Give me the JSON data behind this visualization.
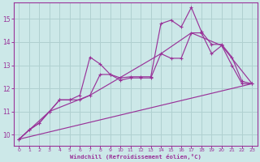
{
  "bg_color": "#cce8e8",
  "grid_color": "#b0d0d0",
  "line_color": "#993399",
  "spine_color": "#993399",
  "xlim": [
    -0.5,
    23.5
  ],
  "ylim": [
    9.5,
    15.7
  ],
  "xticks": [
    0,
    1,
    2,
    3,
    4,
    5,
    6,
    7,
    8,
    9,
    10,
    11,
    12,
    13,
    14,
    15,
    16,
    17,
    18,
    19,
    20,
    21,
    22,
    23
  ],
  "yticks": [
    10,
    11,
    12,
    13,
    14,
    15
  ],
  "xlabel": "Windchill (Refroidissement éolien,°C)",
  "line1_x": [
    0,
    1,
    2,
    3,
    4,
    5,
    6,
    7,
    8,
    9,
    10,
    11,
    12,
    13,
    14,
    15,
    16,
    17,
    18,
    19,
    20,
    21,
    22,
    23
  ],
  "line1_y": [
    9.8,
    10.2,
    10.5,
    11.0,
    11.5,
    11.5,
    11.7,
    13.35,
    13.05,
    12.6,
    12.45,
    12.5,
    12.5,
    12.5,
    14.8,
    14.95,
    14.65,
    15.5,
    14.45,
    13.9,
    13.9,
    13.35,
    12.3,
    12.2
  ],
  "line2_x": [
    0,
    1,
    2,
    3,
    4,
    5,
    6,
    7,
    8,
    9,
    10,
    11,
    12,
    13,
    14,
    15,
    16,
    17,
    18,
    19,
    20,
    21,
    22,
    23
  ],
  "line2_y": [
    9.8,
    10.2,
    10.5,
    11.0,
    11.5,
    11.5,
    11.5,
    11.7,
    12.6,
    12.6,
    12.35,
    12.45,
    12.45,
    12.45,
    13.5,
    13.3,
    13.3,
    14.4,
    14.4,
    13.5,
    13.85,
    13.0,
    12.2,
    12.2
  ],
  "line3_x": [
    0,
    3,
    7,
    14,
    17,
    20,
    23
  ],
  "line3_y": [
    9.8,
    11.0,
    11.7,
    13.5,
    14.4,
    13.85,
    12.2
  ],
  "line4_x": [
    0,
    23
  ],
  "line4_y": [
    9.8,
    12.2
  ]
}
